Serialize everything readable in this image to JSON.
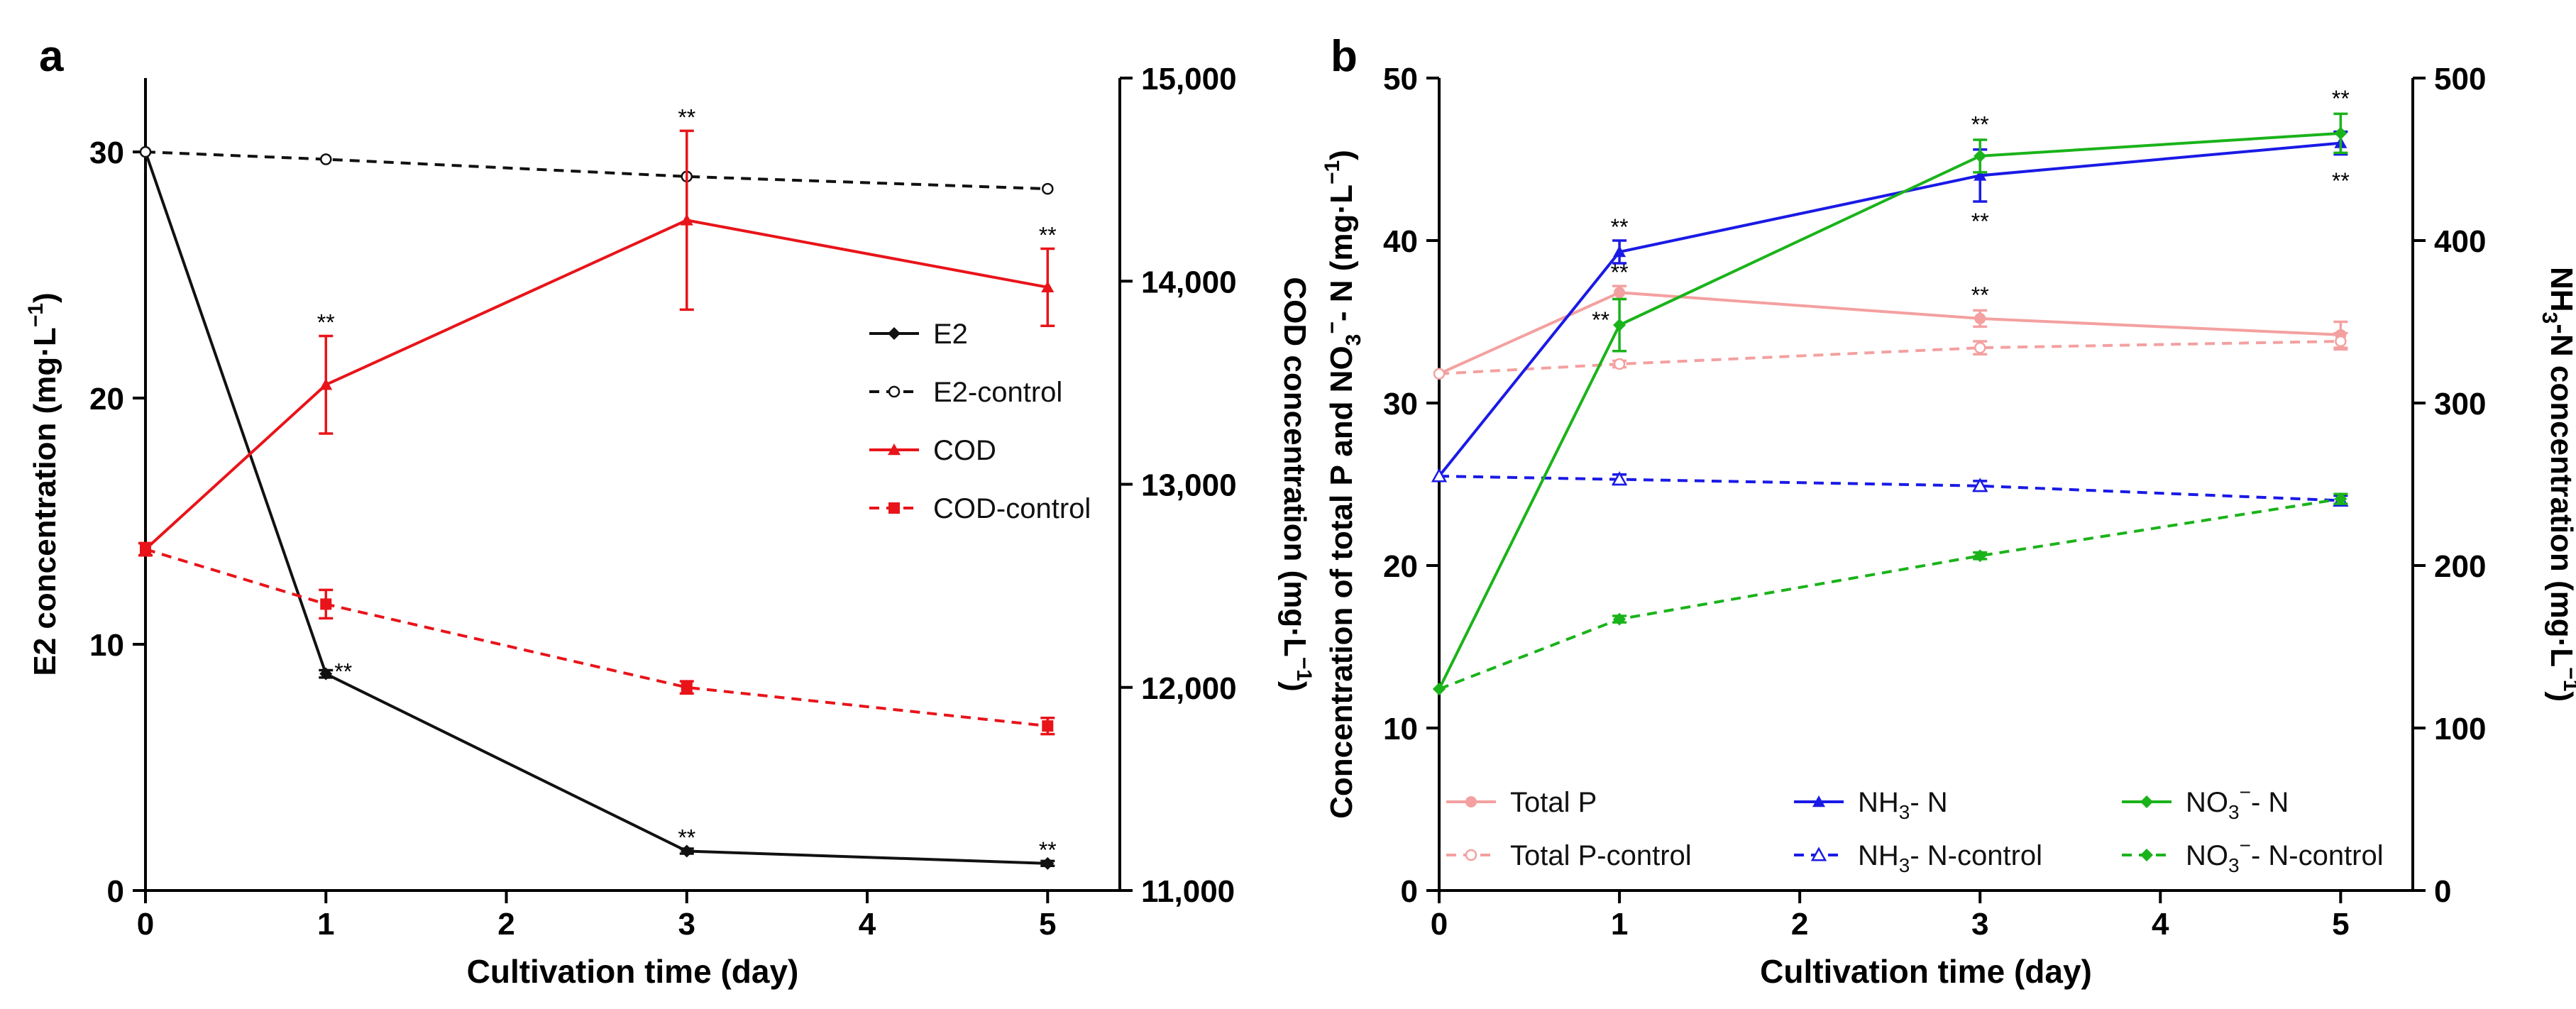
{
  "figure": {
    "panels": [
      {
        "id": "a",
        "label": "a"
      },
      {
        "id": "b",
        "label": "b"
      }
    ]
  },
  "chart_data": [
    {
      "panel": "a",
      "type": "line",
      "x": [
        0,
        1,
        3,
        5
      ],
      "xlabel": "Cultivation time (day)",
      "xlim": [
        0,
        5.4
      ],
      "xticks": [
        "0",
        "1",
        "2",
        "3",
        "4",
        "5"
      ],
      "ylabel_left": "E2 concentration (mg·L",
      "ylabel_left_sup": "−1",
      "ylabel_left_close": ")",
      "ylim_left": [
        0,
        33
      ],
      "yticks_left": [
        "0",
        "10",
        "20",
        "30"
      ],
      "ylabel_right": "COD concentration (mg·L",
      "ylabel_right_sup": "−1",
      "ylabel_right_close": ")",
      "ylim_right": [
        11000,
        15000
      ],
      "yticks_right": [
        "11,000",
        "12,000",
        "13,000",
        "14,000",
        "15,000"
      ],
      "legend_position": "center-right",
      "series": [
        {
          "name": "E2",
          "axis": "left",
          "color": "#111111",
          "dashed": false,
          "marker": "diamond",
          "values": [
            30.0,
            8.8,
            1.6,
            1.1
          ],
          "errors": [
            0,
            0.15,
            0.1,
            0.1
          ]
        },
        {
          "name": "E2-control",
          "axis": "left",
          "color": "#111111",
          "dashed": true,
          "marker": "circle-open",
          "values": [
            30.0,
            29.7,
            29.0,
            28.5
          ],
          "errors": [
            0,
            0,
            0,
            0
          ]
        },
        {
          "name": "COD",
          "axis": "right",
          "color": "#e8141a",
          "dashed": false,
          "marker": "triangle",
          "values": [
            12680,
            13490,
            14300,
            13970
          ],
          "errors": [
            30,
            240,
            440,
            190
          ]
        },
        {
          "name": "COD-control",
          "axis": "right",
          "color": "#e8141a",
          "dashed": true,
          "marker": "square",
          "values": [
            12680,
            12410,
            12000,
            11810
          ],
          "errors": [
            30,
            70,
            30,
            40
          ]
        }
      ],
      "annotations": [
        {
          "text": "**",
          "series": "E2",
          "x": 1,
          "value": 8.8,
          "place": "right"
        },
        {
          "text": "**",
          "series": "E2",
          "x": 3,
          "value": 1.6,
          "place": "above"
        },
        {
          "text": "**",
          "series": "E2",
          "x": 5,
          "value": 1.1,
          "place": "above"
        },
        {
          "text": "**",
          "series": "COD",
          "x": 1,
          "value": 13730,
          "place": "above"
        },
        {
          "text": "**",
          "series": "COD",
          "x": 3,
          "value": 14740,
          "place": "above"
        },
        {
          "text": "**",
          "series": "COD",
          "x": 5,
          "value": 14160,
          "place": "above"
        }
      ]
    },
    {
      "panel": "b",
      "type": "line",
      "x": [
        0,
        1,
        3,
        5
      ],
      "xlabel": "Cultivation time (day)",
      "xlim": [
        0,
        5.4
      ],
      "xticks": [
        "0",
        "1",
        "2",
        "3",
        "4",
        "5"
      ],
      "ylabel_left": "Concentration of total P and NO",
      "ylabel_left_sub": "3",
      "ylabel_left_sup1": "−",
      "ylabel_left_mid": "- N (mg·L",
      "ylabel_left_sup2": "−1",
      "ylabel_left_close": ")",
      "ylim_left": [
        0,
        50
      ],
      "yticks_left": [
        "0",
        "10",
        "20",
        "30",
        "40",
        "50"
      ],
      "ylabel_right": "NH",
      "ylabel_right_sub": "3",
      "ylabel_right_mid": "-N concentration (mg·L",
      "ylabel_right_sup": "−1",
      "ylabel_right_close": ")",
      "ylim_right": [
        0,
        500
      ],
      "yticks_right": [
        "0",
        "100",
        "200",
        "300",
        "400",
        "500"
      ],
      "legend_position": "bottom",
      "series": [
        {
          "name": "Total P",
          "axis": "left",
          "color": "#f4a0a0",
          "dashed": false,
          "marker": "circle",
          "values": [
            31.8,
            36.8,
            35.2,
            34.2
          ],
          "errors": [
            0,
            0.4,
            0.5,
            0.8
          ]
        },
        {
          "name": "Total P-control",
          "axis": "left",
          "color": "#f4a0a0",
          "dashed": true,
          "marker": "circle-open",
          "values": [
            31.8,
            32.4,
            33.4,
            33.8
          ],
          "errors": [
            0,
            0.2,
            0.4,
            0.5
          ]
        },
        {
          "name": "NH",
          "sub": "3",
          "rest": "- N",
          "axis": "right",
          "color": "#1a1ae6",
          "dashed": false,
          "marker": "triangle",
          "values": [
            255,
            393,
            440,
            460
          ],
          "errors": [
            0,
            7,
            16,
            7
          ]
        },
        {
          "name": "NH",
          "sub": "3",
          "rest": "- N-control",
          "axis": "right",
          "color": "#1a1ae6",
          "dashed": true,
          "marker": "triangle-open",
          "values": [
            255,
            253,
            249,
            240
          ],
          "errors": [
            0,
            3,
            3,
            3
          ]
        },
        {
          "name": "NO",
          "sub": "3",
          "sup": "−",
          "rest": "- N",
          "axis": "left",
          "color": "#1ab31a",
          "dashed": false,
          "marker": "diamond",
          "values": [
            12.4,
            34.8,
            45.2,
            46.6
          ],
          "errors": [
            0,
            1.6,
            1.0,
            1.2
          ]
        },
        {
          "name": "NO",
          "sub": "3",
          "sup": "−",
          "rest": "- N-control",
          "axis": "left",
          "color": "#1ab31a",
          "dashed": true,
          "marker": "diamond",
          "values": [
            12.4,
            16.7,
            20.6,
            24.1
          ],
          "errors": [
            0,
            0.2,
            0.2,
            0.3
          ]
        }
      ],
      "annotations": [
        {
          "text": "**",
          "series": "NH3- N",
          "x": 1,
          "value": 40.0,
          "place": "above",
          "axis": "left"
        },
        {
          "text": "**",
          "series": "NH3- N",
          "x": 3,
          "value": 46.3,
          "place": "above",
          "axis": "left"
        },
        {
          "text": "**",
          "series": "NH3- N",
          "x": 3,
          "value": 42.0,
          "place": "below",
          "axis": "left"
        },
        {
          "text": "**",
          "series": "NH3- N",
          "x": 5,
          "value": 47.9,
          "place": "above",
          "axis": "left"
        },
        {
          "text": "**",
          "series": "NH3- N",
          "x": 5,
          "value": 44.5,
          "place": "below",
          "axis": "left"
        },
        {
          "text": "**",
          "series": "NO3- N",
          "x": 1,
          "value": 37.2,
          "place": "above",
          "axis": "left"
        },
        {
          "text": "**",
          "series": "NO3- N",
          "x": 1,
          "value": 34.8,
          "place": "left",
          "axis": "left"
        },
        {
          "text": "**",
          "series": "Total P",
          "x": 3,
          "value": 35.8,
          "place": "above",
          "axis": "left"
        }
      ]
    }
  ]
}
